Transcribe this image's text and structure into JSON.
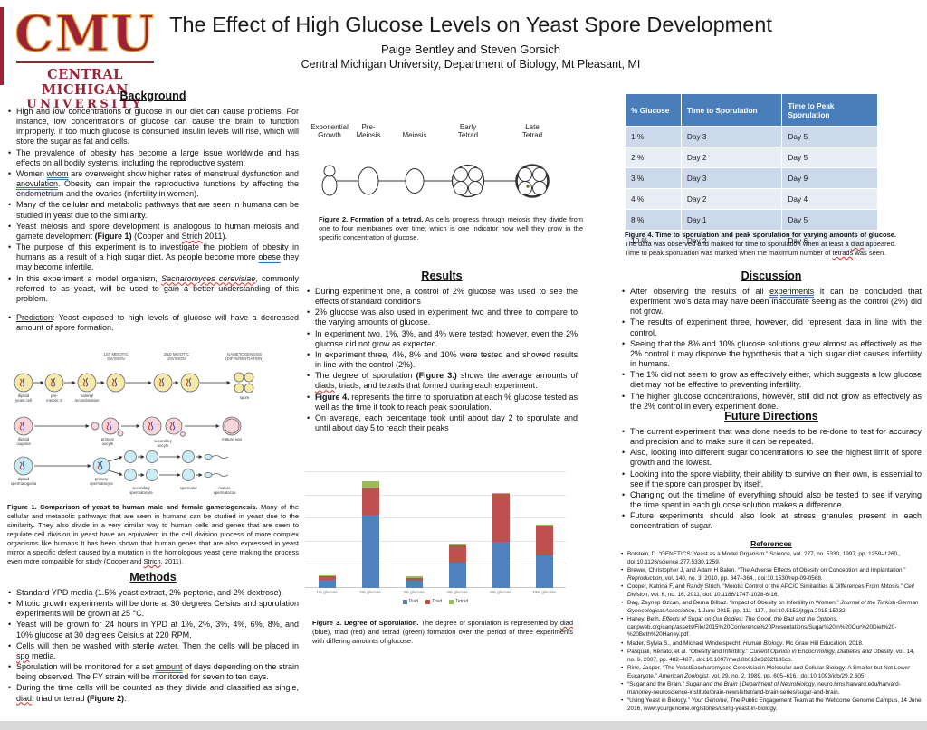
{
  "header": {
    "logo": {
      "acronym": "CMU",
      "line1": "CENTRAL MICHIGAN",
      "line2": "UNIVERSITY"
    },
    "title": "The Effect of High Glucose Levels on Yeast Spore Development",
    "authors": "Paige Bentley and Steven Gorsich",
    "affiliation": "Central Michigan University, Department of Biology, Mt Pleasant, MI"
  },
  "background": {
    "heading": "Background",
    "bullets": [
      "High and low concentrations of glucose in our diet can cause problems. For instance, low concentrations of glucose can cause the brain to function improperly. if too much glucose is consumed insulin levels will rise, which will store the sugar as fat and cells.",
      "The prevalence of obesity has become a large issue worldwide and has effects on all bodily systems, including the reproductive system.",
      "Women ^^whom^^ are overweight show higher rates of menstrual dysfunction and ^^anovulation^^. Obesity can impair the reproductive functions by affecting the endometrium and the ovaries (infertility in women).",
      "Many of the cellular and metabolic pathways that are seen in humans can be studied in yeast due to the similarity.",
      "Yeast meiosis and spore development is analogous to human meiosis and gamete development **(Figure 1)** (Cooper and ~~Strich~~ 2011).",
      "The purpose of this experiment is to investigate the problem of obesity in humans %%as a result of%% a high sugar diet. As people become more ^^obese^^ they may become infertile.",
      "In this experiment a model organism, ~~*Sacharomyces cerevisiae*~~, commonly referred to as yeast, will be used to gain a better understanding of this problem."
    ],
    "prediction": [
      "__Prediction__: Yeast exposed to high levels of glucose will have a decreased amount of spore formation."
    ]
  },
  "figure1": {
    "caption_bold": "Figure 1.  Comparison of yeast to human male and female gametogenesis.",
    "caption_rest": " Many of the cellular and metabolic pathways that are seen in humans can be studied in yeast due to the similarity. They also divide in a very similar way to human cells and genes that are seen to regulate cell division in yeast have an equivalent in the cell division process of more complex organisms like humans It has been shown that human genes that are also expressed in yeast mirror a specific defect caused by a mutation in the homologous yeast gene making the process even more compatible for study (Cooper and ~~Strich~~, 2011).",
    "col_headers": [
      [
        "1ST MEIOTIC",
        "DIVISION"
      ],
      [
        "2ND MEIOTIC",
        "DIVISION"
      ],
      [
        "GAMETOGENESIS",
        "(DIFFERENTIATION)"
      ]
    ],
    "row1_labels": [
      [
        "diploid",
        "yeast cell"
      ],
      [
        "pre-",
        "meiotic S"
      ],
      [
        "pairing/",
        "recombination"
      ],
      [
        "spore"
      ]
    ],
    "row2_labels": [
      [
        "diploid",
        "oogonia"
      ],
      [
        "primary",
        "oocyte"
      ],
      [
        "secondary",
        "oocyte"
      ],
      [
        "mature egg"
      ]
    ],
    "row3_labels": [
      [
        "diploid",
        "spermatogonia"
      ],
      [
        "primary",
        "spermatocyte"
      ],
      [
        "secondary",
        "spermatocyte"
      ],
      [
        "spermatid"
      ],
      [
        "mature",
        "spermatozoa"
      ]
    ]
  },
  "methods": {
    "heading": "Methods",
    "bullets": [
      "Standard YPD media (1.5% yeast extract, 2% peptone, and 2% dextrose).",
      "Mitotic growth experiments will be done at 30 degrees Celsius and sporulation experiments will be grown at 25 °C.",
      "Yeast will be grown for 24 hours in YPD at 1%, 2%, 3%, 4%, 6%, 8%, and 10% glucose at 30 degrees Celsius at 220 RPM.",
      "Cells will then be washed with sterile water. Then the cells will be placed in ~~spo~~ media.",
      "Sporulation will be monitored for a set ^^amount^^ of days depending on the strain being observed. The FY strain will be monitored for seven to ten days.",
      "During the time cells will be counted as they divide and classified as single, ~~diad~~, triad or tetrad **(Figure 2)**."
    ]
  },
  "figure2": {
    "stages": [
      "Exponential\nGrowth",
      "Pre-\nMeiosis",
      "Meiosis",
      "Early\nTetrad",
      "Late\nTetrad"
    ],
    "caption_bold": "Figure 2. Formation of a tetrad.",
    "caption_rest": " As cells progress through meiosis they divide from one to four membranes over time; which is one indicator how well they grow in the specific concentration of glucose."
  },
  "results": {
    "heading": "Results",
    "bullets": [
      "During experiment one, a control of 2% glucose was used to see the effects of standard conditions",
      "2% glucose was also used in experiment two and three to compare to the varying amounts of glucose.",
      "In experiment two, 1%, 3%, and 4% were tested; however, even the 2% glucose did not grow as expected.",
      "In experiment three, 4%, 8% and 10% were tested and showed results in line with the control (2%).",
      "The degree of sporulation **(Figure 3.)** shows the average amounts of ~~diads~~, triads, and tetrads that formed during each experiment.",
      "**Figure 4.** represents the time to sporulation at each % glucose tested as well as the time it took to reach peak sporulation.",
      "On average, each percentage took until about day 2 to sporulate and until about day 5 to reach their peaks"
    ]
  },
  "chart_data": {
    "type": "bar",
    "stacked": true,
    "categories": [
      "1% glucose",
      "2% glucose",
      "3% glucose",
      "4% glucose",
      "8% glucose",
      "10% glucose"
    ],
    "series": [
      {
        "name": "Diad",
        "color": "#4f81bd",
        "values": [
          7,
          63,
          6,
          22,
          40,
          28
        ]
      },
      {
        "name": "Triad",
        "color": "#c0504d",
        "values": [
          3,
          24,
          3,
          15,
          41,
          25
        ]
      },
      {
        "name": "Tetrad",
        "color": "#9bbb59",
        "values": [
          1,
          5,
          1,
          1,
          1,
          2
        ]
      }
    ],
    "title": "",
    "xlabel": "",
    "ylabel": "",
    "ylim": [
      0,
      100
    ],
    "gridline_step": 20,
    "grid": true,
    "y_tick_labels_visible": false,
    "legend_position": "bottom"
  },
  "figure3": {
    "caption_bold": "Figure 3. Degree of Sporulation.",
    "caption_rest": " The degree of sporulation is represented by ~~diad~~ (blue), triad (red) and tetrad (green) formation over the period of three experiments with differing amounts of glucose."
  },
  "figure4": {
    "table": {
      "columns": [
        "% Glucose",
        "Time to Sporulation",
        "Time to Peak Sporulation"
      ],
      "rows": [
        [
          "1 %",
          "Day 3",
          "Day 5"
        ],
        [
          "2 %",
          "Day 2",
          "Day 5"
        ],
        [
          "3 %",
          "Day 3",
          "Day 9"
        ],
        [
          "4 %",
          "Day 2",
          "Day 4"
        ],
        [
          "8 %",
          "Day 1",
          "Day 5"
        ],
        [
          "10 %",
          "Day 2",
          "Day 6"
        ]
      ]
    },
    "caption_bold": "Figure 4. Time to sporulation and peak sporulation for varying amounts of glucose.",
    "caption_rest": " The data was observed and marked for time to sporulation when at least a ~~diad~~ appeared. Time to peak sporulation was marked when the maximum number of ~~tetrads~~ was seen."
  },
  "discussion": {
    "heading": "Discussion",
    "bullets": [
      "After observing the results of all ^^experiments^^ it can be concluded that experiment two's data may have been inaccurate seeing as the control (2%) did not grow.",
      "The results of experiment three, however, did represent data in line with the control.",
      "Seeing that the 8% and 10% glucose solutions grew almost as effectively as the 2% control it may disprove the hypothesis that a high sugar diet causes infertility in humans.",
      "The 1% did not seem to grow as effectively either, which suggests a low glucose diet may not be effective to preventing infertility.",
      "The higher glucose concentrations, however, still did not grow as effectively as the 2% control in every experiment done."
    ]
  },
  "future": {
    "heading": "Future Directions",
    "bullets": [
      "The current experiment that was done needs to be re-done to test for accuracy and precision and to make sure it can be repeated.",
      "Also, looking into different sugar concentrations to see the highest limit of spore growth and the lowest.",
      "Looking into the spore viability, their ability to survive on their own,  is essential to see if the spore can prosper by itself.",
      "Changing out the timeline of everything should also be tested to see if varying the time spent in each glucose solution makes a difference.",
      "Future experiments should also look at stress granules present in each concentration of sugar."
    ]
  },
  "references": {
    "heading": "References",
    "items": [
      "Botstein, D. “GENETICS: Yeast as a Model Organism.” *Science*, vol. 277, no. 5330, 1997, pp. 1259–1260., doi:10.1126/science.277.5330.1259.",
      "Brewer, Christopher J, and Adam H Balen. “The Adverse Effects of Obesity on Conception and Implantation.” *Reproduction*, vol. 140, no. 3, 2010, pp. 347–364., doi:10.1530/rep-09-0568.",
      "Cooper, Katrina F, and Randy Strich. “Meiotic Control of the APC/C Similarities & Differences From Mitosis.” *Cell Division*, vol. 6, no. 16, 2011, doi: 10.1186/1747-1028-6-16.",
      "Dag, Zeynep Ozcan, and Berna Dilbaz. “Impact of Obesity on Infertility in Women.” *Journal of the Turkish-German Gynecological Association*, 1 June 2015, pp. 111–117., doi:10.5152/jtgga.2015.15232.",
      "Haney, Beth. *Effects of Sugar on Our Bodies: The Good, the Bad and the Options*. canpweb.org/canp/assets/File/2015%20Conference%20Presentations/Sugar%20in%20Our%20Diet%20-%20Beth%20Haney.pdf.",
      "Mader, Sylvia S., and Michael Windelspecht. *Human Biology*. Mc Graw Hill Education, 2018.",
      "Pasquali, Renato, et al. “Obesity and Infertility.” *Current Opinion in Endocrinology, Diabetes and Obesity*, vol. 14, no. 6, 2007, pp. 482–487., doi:10.1097/med.0b013e3282f1d6cb.",
      "Rine, Jasper. “The YeastSaccharomyces Cerevisiaein Molecular and Cellular Biology: A Smaller but Not Lower Eucaryote.” *American Zoologist*, vol. 29, no. 2, 1989, pp. 605–616., doi:10.1093/icb/29.2.605.",
      "“Sugar and the Brain.” *Sugar and the Brain | Department of Neurobiology*, neuro.hms.harvard.edu/harvard-mahoney-neuroscience-institute/brain-newsletter/and-brain-series/sugar-and-brain.",
      "“Using Yeast in Biology.” *Your Genome*, The Public Engagement Team at the Wellcome Genome Campus, 14 June 2016, www.yourgenome.org/stories/using-yeast-in-biology."
    ]
  },
  "colors": {
    "cmu_maroon": "#9d2235",
    "cmu_gold": "#eaa93a",
    "table_header_blue": "#4a7ebb",
    "table_row_dark": "#ccd9eb",
    "table_row_light": "#e8eef6",
    "bar_diad": "#4f81bd",
    "bar_triad": "#c0504d",
    "bar_tetrad": "#9bbb59"
  }
}
